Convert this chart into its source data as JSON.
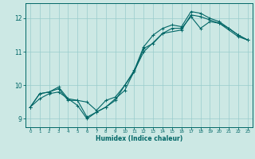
{
  "title": "",
  "xlabel": "Humidex (Indice chaleur)",
  "bg_color": "#cce8e4",
  "grid_color": "#99cccc",
  "line_color": "#006666",
  "xlim": [
    -0.5,
    23.5
  ],
  "ylim": [
    8.75,
    12.45
  ],
  "xticks": [
    0,
    1,
    2,
    3,
    4,
    5,
    6,
    7,
    8,
    9,
    10,
    11,
    12,
    13,
    14,
    15,
    16,
    17,
    18,
    19,
    20,
    21,
    22,
    23
  ],
  "yticks": [
    9,
    10,
    11,
    12
  ],
  "line1_x": [
    0,
    1,
    2,
    3,
    4,
    5,
    6,
    7,
    8,
    9,
    10,
    11,
    12,
    13,
    14,
    15,
    16,
    17,
    18,
    19,
    20,
    21,
    22,
    23
  ],
  "line1_y": [
    9.35,
    9.75,
    9.8,
    9.95,
    9.6,
    9.55,
    9.5,
    9.25,
    9.55,
    9.65,
    10.0,
    10.45,
    11.15,
    11.5,
    11.7,
    11.8,
    11.75,
    12.2,
    12.15,
    12.0,
    11.9,
    11.7,
    11.5,
    11.35
  ],
  "line2_x": [
    0,
    1,
    2,
    3,
    4,
    5,
    6,
    7,
    8,
    9,
    10,
    11,
    12,
    13,
    14,
    15,
    16,
    17,
    18,
    19,
    20,
    21,
    22,
    23
  ],
  "line2_y": [
    9.35,
    9.75,
    9.8,
    9.9,
    9.55,
    9.55,
    9.05,
    9.2,
    9.35,
    9.55,
    10.0,
    10.4,
    11.1,
    11.25,
    11.55,
    11.7,
    11.7,
    12.05,
    11.7,
    11.9,
    11.85,
    11.7,
    11.5,
    11.35
  ],
  "line3_x": [
    0,
    1,
    2,
    3,
    5,
    6,
    7,
    8,
    9,
    10,
    12,
    14,
    16,
    17,
    18,
    19,
    20,
    22,
    23
  ],
  "line3_y": [
    9.35,
    9.6,
    9.75,
    9.8,
    9.4,
    9.0,
    9.2,
    9.35,
    9.6,
    9.85,
    11.0,
    11.55,
    11.65,
    12.1,
    12.05,
    11.95,
    11.85,
    11.45,
    11.35
  ]
}
